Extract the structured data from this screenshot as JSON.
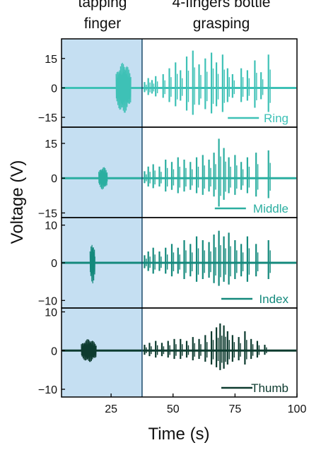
{
  "chart_data": {
    "type": "line",
    "headers": {
      "left": [
        "tapping",
        "finger"
      ],
      "right": [
        "4-fingers bottle",
        "grasping"
      ]
    },
    "xlabel": "Time (s)",
    "ylabel": "Voltage (V)",
    "xlim": [
      5,
      100
    ],
    "xticks": [
      25,
      50,
      75,
      100
    ],
    "highlight_region": [
      5,
      37.5
    ],
    "highlight_color": "#c5dff2",
    "panels": [
      {
        "name": "Ring",
        "color": "#3ec1b6",
        "ylim": [
          -20,
          25
        ],
        "yticks": [
          15,
          0,
          -15
        ],
        "tapping": {
          "start": 27,
          "end": 33,
          "amp": 13
        },
        "bursts": [
          {
            "t": 38.5,
            "v": 3
          },
          {
            "t": 40,
            "v": 5
          },
          {
            "t": 41.5,
            "v": 4
          },
          {
            "t": 43,
            "v": 6
          },
          {
            "t": 46,
            "v": 7
          },
          {
            "t": 48.5,
            "v": 10
          },
          {
            "t": 51,
            "v": 13
          },
          {
            "t": 53,
            "v": 9
          },
          {
            "t": 55.5,
            "v": 16
          },
          {
            "t": 58,
            "v": 19
          },
          {
            "t": 60.5,
            "v": 12
          },
          {
            "t": 63,
            "v": 15
          },
          {
            "t": 65.5,
            "v": 18
          },
          {
            "t": 67.5,
            "v": 13
          },
          {
            "t": 70,
            "v": 17
          },
          {
            "t": 72,
            "v": 10
          },
          {
            "t": 74,
            "v": 7
          },
          {
            "t": 77.5,
            "v": 10
          },
          {
            "t": 80,
            "v": 9
          },
          {
            "t": 83,
            "v": 14
          },
          {
            "t": 85.5,
            "v": 8
          },
          {
            "t": 88.5,
            "v": 17
          }
        ]
      },
      {
        "name": "Middle",
        "color": "#2baea0",
        "ylim": [
          -17,
          22
        ],
        "yticks": [
          15,
          0,
          -15
        ],
        "tapping": {
          "start": 20,
          "end": 23.5,
          "amp": 5
        },
        "bursts": [
          {
            "t": 38.5,
            "v": 3
          },
          {
            "t": 40,
            "v": 5
          },
          {
            "t": 42,
            "v": 6
          },
          {
            "t": 44.5,
            "v": 5
          },
          {
            "t": 47,
            "v": 8
          },
          {
            "t": 49.5,
            "v": 7
          },
          {
            "t": 52,
            "v": 9
          },
          {
            "t": 54.5,
            "v": 8
          },
          {
            "t": 57,
            "v": 7
          },
          {
            "t": 59.5,
            "v": 9
          },
          {
            "t": 62,
            "v": 10
          },
          {
            "t": 64.5,
            "v": 8
          },
          {
            "t": 66.5,
            "v": 11
          },
          {
            "t": 68.5,
            "v": 17
          },
          {
            "t": 70.5,
            "v": 13
          },
          {
            "t": 72.5,
            "v": 9
          },
          {
            "t": 75,
            "v": 10
          },
          {
            "t": 77.5,
            "v": 7
          },
          {
            "t": 80,
            "v": 9
          },
          {
            "t": 83.5,
            "v": 11
          },
          {
            "t": 88.5,
            "v": 12
          }
        ]
      },
      {
        "name": "Index",
        "color": "#14897c",
        "ylim": [
          -12,
          12
        ],
        "yticks": [
          10,
          0,
          -10
        ],
        "tapping": {
          "start": 16.5,
          "end": 18.5,
          "amp": 5.5
        },
        "bursts": [
          {
            "t": 38.5,
            "v": 2
          },
          {
            "t": 40,
            "v": 3
          },
          {
            "t": 42,
            "v": 4
          },
          {
            "t": 44.5,
            "v": 3
          },
          {
            "t": 47,
            "v": 4
          },
          {
            "t": 49.5,
            "v": 5
          },
          {
            "t": 52,
            "v": 4
          },
          {
            "t": 54.5,
            "v": 6
          },
          {
            "t": 57,
            "v": 5
          },
          {
            "t": 59.5,
            "v": 7
          },
          {
            "t": 62,
            "v": 6
          },
          {
            "t": 64.5,
            "v": 5.5
          },
          {
            "t": 66.5,
            "v": 7.5
          },
          {
            "t": 68.5,
            "v": 8.5
          },
          {
            "t": 70.5,
            "v": 7
          },
          {
            "t": 72.5,
            "v": 8
          },
          {
            "t": 75,
            "v": 6
          },
          {
            "t": 77.5,
            "v": 5
          },
          {
            "t": 80,
            "v": 7
          },
          {
            "t": 83.5,
            "v": 5
          },
          {
            "t": 88.5,
            "v": 6
          }
        ]
      },
      {
        "name": "Thumb",
        "color": "#0d3b2f",
        "ylim": [
          -12,
          11
        ],
        "yticks": [
          10,
          0,
          -10
        ],
        "tapping": {
          "start": 13,
          "end": 19,
          "amp": 3
        },
        "bursts": [
          {
            "t": 38.5,
            "v": 1.5
          },
          {
            "t": 40.5,
            "v": 2
          },
          {
            "t": 43,
            "v": 2.5
          },
          {
            "t": 45.5,
            "v": 2
          },
          {
            "t": 48,
            "v": 2.5
          },
          {
            "t": 50.5,
            "v": 3
          },
          {
            "t": 53,
            "v": 3
          },
          {
            "t": 55.5,
            "v": 2.5
          },
          {
            "t": 58,
            "v": 3.5
          },
          {
            "t": 60.5,
            "v": 3
          },
          {
            "t": 63,
            "v": 4
          },
          {
            "t": 65.5,
            "v": 5
          },
          {
            "t": 67.5,
            "v": 6
          },
          {
            "t": 69,
            "v": 7
          },
          {
            "t": 70.5,
            "v": 6.5
          },
          {
            "t": 72,
            "v": 5
          },
          {
            "t": 74,
            "v": 4
          },
          {
            "t": 76.5,
            "v": 3.5
          },
          {
            "t": 79,
            "v": 5
          },
          {
            "t": 81.5,
            "v": 3
          },
          {
            "t": 84,
            "v": 2.5
          },
          {
            "t": 87,
            "v": 1.5
          }
        ]
      }
    ]
  }
}
